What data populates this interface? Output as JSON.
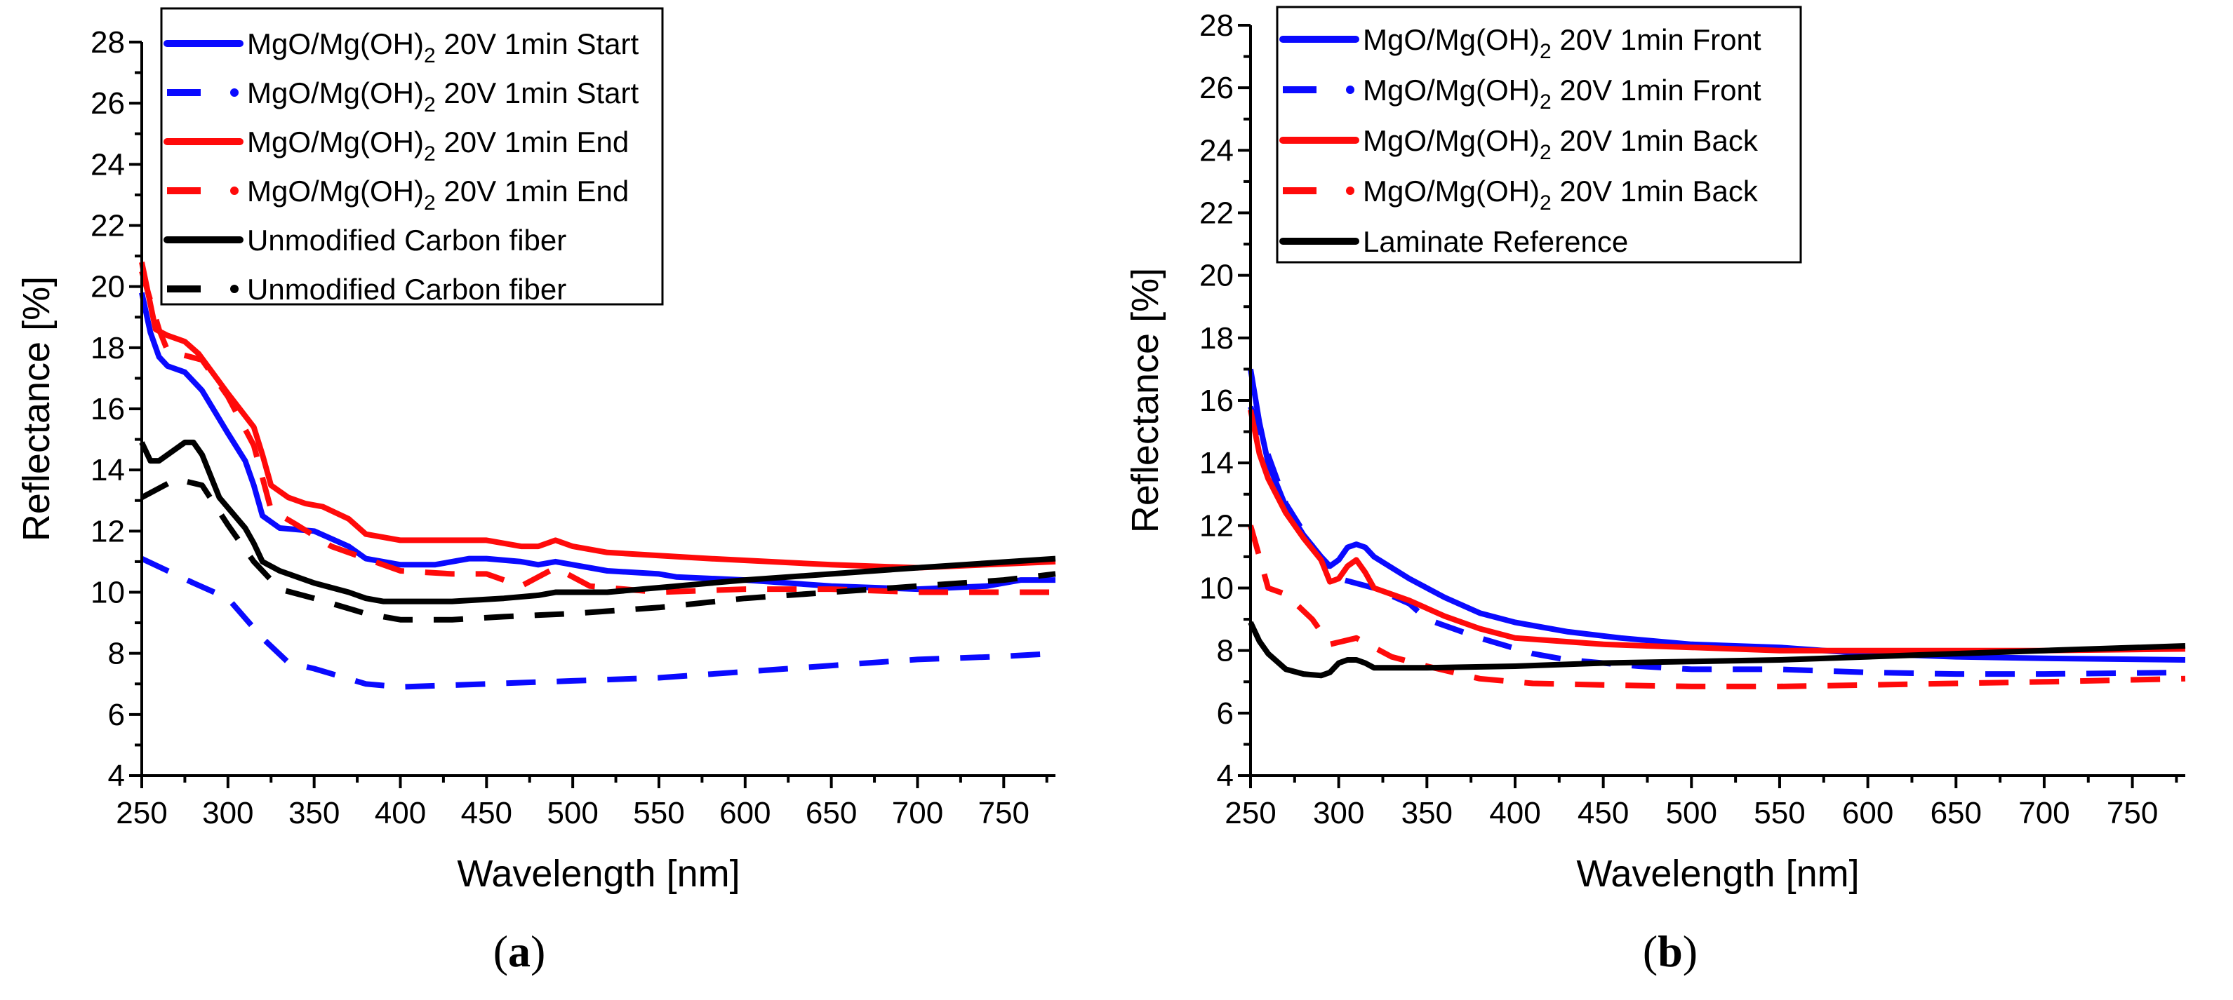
{
  "colors": {
    "blue": "#0a0aff",
    "red": "#ff0a0a",
    "black": "#000000"
  },
  "chart_data": [
    {
      "type": "line",
      "panel_label": "a",
      "xlabel": "Wavelength [nm]",
      "ylabel": "Reflectance [%]",
      "xlim": [
        250,
        780
      ],
      "ylim": [
        4,
        28
      ],
      "xticks": [
        250,
        300,
        350,
        400,
        450,
        500,
        550,
        600,
        650,
        700,
        750
      ],
      "yticks": [
        4,
        6,
        8,
        10,
        12,
        14,
        16,
        18,
        20,
        22,
        24,
        26,
        28
      ],
      "legend_position": "top-left",
      "series": [
        {
          "name": {
            "prefix": "MgO/Mg(OH)",
            "sub": "2",
            "suffix": " 20V 1min Start"
          },
          "color": "blue",
          "style": "solid",
          "x": [
            250,
            255,
            260,
            265,
            275,
            285,
            300,
            310,
            315,
            320,
            330,
            350,
            370,
            380,
            400,
            420,
            440,
            450,
            470,
            480,
            490,
            500,
            520,
            550,
            560,
            600,
            650,
            700,
            740,
            760,
            780
          ],
          "y": [
            19.8,
            18.5,
            17.7,
            17.4,
            17.2,
            16.6,
            15.2,
            14.3,
            13.5,
            12.5,
            12.1,
            12.0,
            11.5,
            11.1,
            10.9,
            10.9,
            11.1,
            11.1,
            11.0,
            10.9,
            11.0,
            10.9,
            10.7,
            10.6,
            10.5,
            10.4,
            10.2,
            10.1,
            10.2,
            10.4,
            10.4
          ]
        },
        {
          "name": {
            "prefix": "MgO/Mg(OH)",
            "sub": "2",
            "suffix": " 20V 1min Start"
          },
          "color": "blue",
          "style": "dashed",
          "x": [
            250,
            280,
            300,
            320,
            335,
            350,
            380,
            400,
            450,
            500,
            550,
            600,
            650,
            700,
            750,
            780
          ],
          "y": [
            11.1,
            10.3,
            9.8,
            8.5,
            7.7,
            7.5,
            7.0,
            6.9,
            7.0,
            7.1,
            7.2,
            7.4,
            7.6,
            7.8,
            7.9,
            8.0
          ]
        },
        {
          "name": {
            "prefix": "MgO/Mg(OH)",
            "sub": "2",
            "suffix": " 20V 1min End"
          },
          "color": "red",
          "style": "solid",
          "x": [
            250,
            258,
            265,
            275,
            283,
            300,
            315,
            320,
            325,
            335,
            345,
            355,
            370,
            380,
            400,
            420,
            440,
            450,
            470,
            480,
            490,
            500,
            520,
            550,
            580,
            650,
            700,
            780
          ],
          "y": [
            20.8,
            18.6,
            18.4,
            18.2,
            17.8,
            16.5,
            15.4,
            14.5,
            13.5,
            13.1,
            12.9,
            12.8,
            12.4,
            11.9,
            11.7,
            11.7,
            11.7,
            11.7,
            11.5,
            11.5,
            11.7,
            11.5,
            11.3,
            11.2,
            11.1,
            10.9,
            10.8,
            11.0
          ]
        },
        {
          "name": {
            "prefix": "MgO/Mg(OH)",
            "sub": "2",
            "suffix": " 20V 1min End"
          },
          "color": "red",
          "style": "dashed",
          "x": [
            250,
            260,
            265,
            285,
            300,
            315,
            325,
            340,
            360,
            400,
            430,
            450,
            470,
            490,
            510,
            550,
            600,
            650,
            700,
            780
          ],
          "y": [
            20.5,
            18.6,
            17.9,
            17.6,
            16.4,
            14.8,
            12.7,
            12.2,
            11.5,
            10.7,
            10.6,
            10.6,
            10.2,
            10.8,
            10.2,
            10.0,
            10.1,
            10.1,
            10.0,
            10.0
          ]
        },
        {
          "name": {
            "prefix": "Unmodified Carbon fiber",
            "sub": "",
            "suffix": ""
          },
          "color": "black",
          "style": "solid",
          "x": [
            250,
            255,
            260,
            275,
            280,
            285,
            295,
            310,
            315,
            320,
            330,
            350,
            370,
            380,
            390,
            430,
            460,
            480,
            490,
            520,
            560,
            600,
            650,
            700,
            780
          ],
          "y": [
            14.9,
            14.3,
            14.3,
            14.9,
            14.9,
            14.5,
            13.1,
            12.1,
            11.6,
            11.0,
            10.7,
            10.3,
            10.0,
            9.8,
            9.7,
            9.7,
            9.8,
            9.9,
            10.0,
            10.0,
            10.2,
            10.4,
            10.6,
            10.8,
            11.1
          ]
        },
        {
          "name": {
            "prefix": "Unmodified Carbon fiber",
            "sub": "",
            "suffix": ""
          },
          "color": "black",
          "style": "dashed",
          "x": [
            250,
            270,
            285,
            300,
            315,
            330,
            350,
            380,
            400,
            430,
            460,
            500,
            550,
            600,
            650,
            700,
            750,
            780
          ],
          "y": [
            13.1,
            13.7,
            13.5,
            12.2,
            11.0,
            10.1,
            9.8,
            9.3,
            9.1,
            9.1,
            9.2,
            9.3,
            9.5,
            9.8,
            10.0,
            10.2,
            10.4,
            10.6
          ]
        }
      ]
    },
    {
      "type": "line",
      "panel_label": "b",
      "xlabel": "Wavelength [nm]",
      "ylabel": "Reflectance [%]",
      "xlim": [
        250,
        780
      ],
      "ylim": [
        4,
        28
      ],
      "xticks": [
        250,
        300,
        350,
        400,
        450,
        500,
        550,
        600,
        650,
        700,
        750
      ],
      "yticks": [
        4,
        6,
        8,
        10,
        12,
        14,
        16,
        18,
        20,
        22,
        24,
        26,
        28
      ],
      "legend_position": "top-left",
      "series": [
        {
          "name": {
            "prefix": "MgO/Mg(OH)",
            "sub": "2",
            "suffix": " 20V 1min Front"
          },
          "color": "blue",
          "style": "solid",
          "x": [
            250,
            255,
            260,
            270,
            280,
            290,
            295,
            300,
            305,
            310,
            315,
            320,
            340,
            360,
            380,
            400,
            430,
            460,
            500,
            550,
            600,
            650,
            700,
            780
          ],
          "y": [
            17.0,
            15.3,
            14.0,
            12.6,
            11.7,
            11.0,
            10.7,
            10.9,
            11.3,
            11.4,
            11.3,
            11.0,
            10.3,
            9.7,
            9.2,
            8.9,
            8.6,
            8.4,
            8.2,
            8.1,
            7.9,
            7.8,
            7.75,
            7.7
          ]
        },
        {
          "name": {
            "prefix": "MgO/Mg(OH)",
            "sub": "2",
            "suffix": " 20V 1min Front"
          },
          "color": "blue",
          "style": "dashed",
          "x": [
            250,
            270,
            280,
            290,
            300,
            320,
            340,
            350,
            380,
            410,
            430,
            470,
            500,
            550,
            600,
            650,
            700,
            780
          ],
          "y": [
            15.8,
            12.7,
            11.8,
            10.9,
            10.3,
            10.0,
            9.5,
            9.0,
            8.4,
            7.9,
            7.7,
            7.5,
            7.4,
            7.4,
            7.3,
            7.25,
            7.25,
            7.3
          ]
        },
        {
          "name": {
            "prefix": "MgO/Mg(OH)",
            "sub": "2",
            "suffix": " 20V 1min Back"
          },
          "color": "red",
          "style": "solid",
          "x": [
            250,
            255,
            260,
            270,
            280,
            290,
            295,
            300,
            305,
            310,
            315,
            320,
            340,
            360,
            380,
            400,
            450,
            500,
            550,
            600,
            700,
            780
          ],
          "y": [
            15.7,
            14.3,
            13.5,
            12.4,
            11.6,
            10.9,
            10.2,
            10.3,
            10.7,
            10.9,
            10.5,
            10.0,
            9.6,
            9.1,
            8.7,
            8.4,
            8.2,
            8.1,
            8.0,
            8.0,
            8.0,
            8.05
          ]
        },
        {
          "name": {
            "prefix": "MgO/Mg(OH)",
            "sub": "2",
            "suffix": " 20V 1min Back"
          },
          "color": "red",
          "style": "dashed",
          "x": [
            250,
            255,
            260,
            270,
            285,
            295,
            310,
            330,
            350,
            380,
            410,
            450,
            500,
            550,
            600,
            650,
            700,
            780
          ],
          "y": [
            12.0,
            11.0,
            10.0,
            9.8,
            9.0,
            8.2,
            8.4,
            7.8,
            7.5,
            7.1,
            6.95,
            6.9,
            6.85,
            6.85,
            6.9,
            6.95,
            7.0,
            7.1
          ]
        },
        {
          "name": {
            "prefix": "Laminate Reference",
            "sub": "",
            "suffix": ""
          },
          "color": "black",
          "style": "solid",
          "x": [
            250,
            255,
            260,
            270,
            280,
            290,
            295,
            300,
            305,
            310,
            315,
            320,
            350,
            400,
            450,
            500,
            550,
            600,
            650,
            700,
            780
          ],
          "y": [
            8.9,
            8.3,
            7.9,
            7.4,
            7.25,
            7.2,
            7.3,
            7.6,
            7.7,
            7.7,
            7.6,
            7.45,
            7.45,
            7.5,
            7.6,
            7.65,
            7.7,
            7.8,
            7.9,
            8.0,
            8.15
          ]
        }
      ]
    }
  ]
}
